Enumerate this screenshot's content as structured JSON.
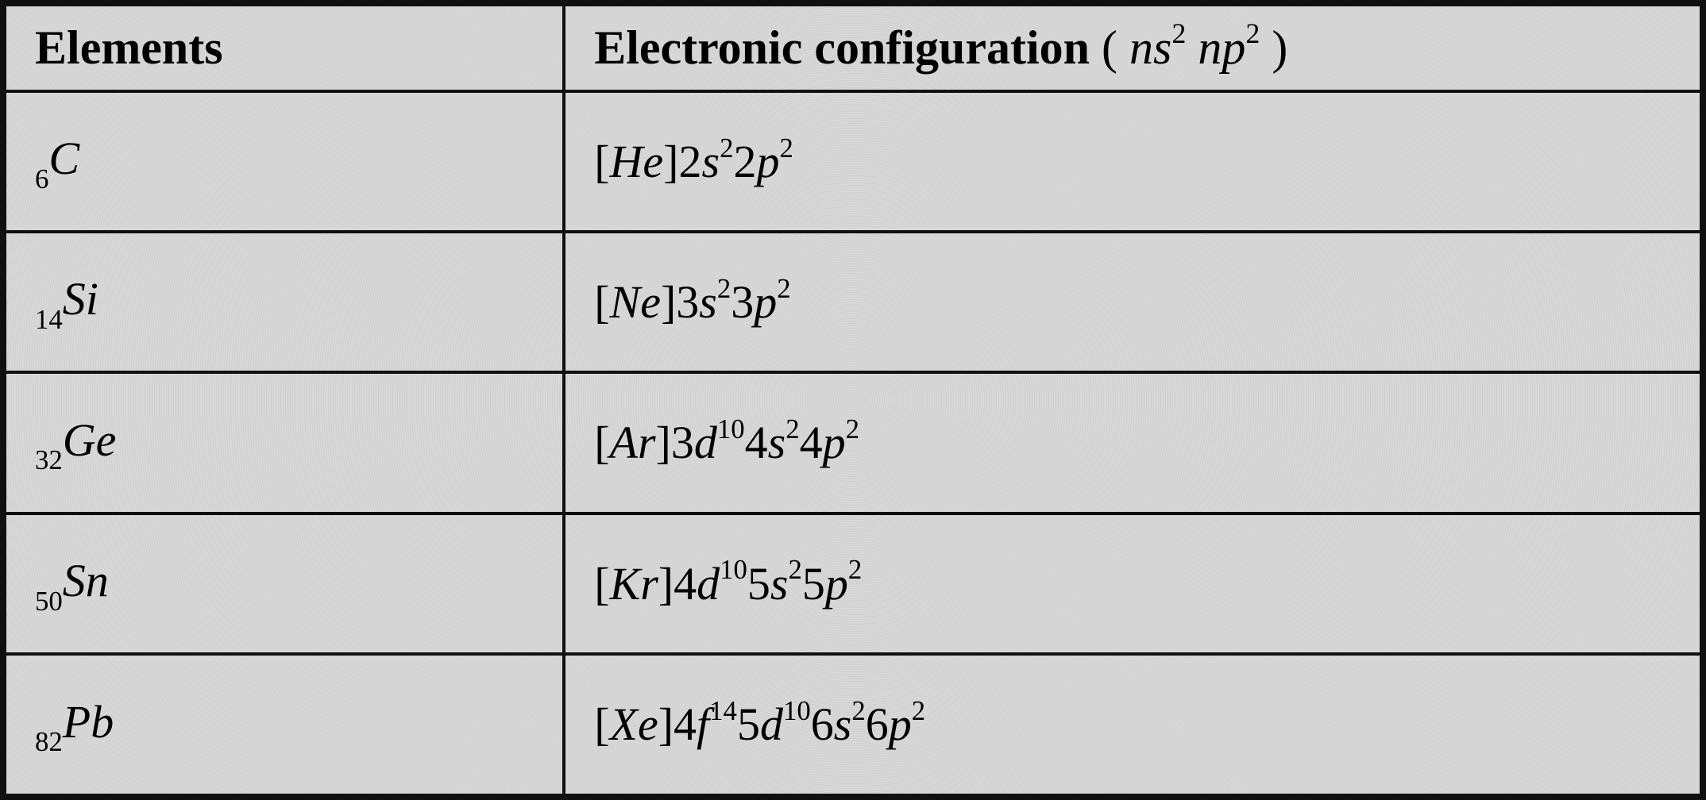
{
  "table": {
    "type": "table",
    "background_color": "#d8d8d8",
    "border_color": "#101010",
    "border_width_outer": 8,
    "border_width_inner": 4,
    "columns": [
      {
        "header": "Elements",
        "width_pct": 33
      },
      {
        "header_main": "Electronic configuration",
        "header_paren_prefix": "(",
        "header_paren_ns": "ns",
        "header_paren_ns_exp": "2",
        "header_paren_np": "np",
        "header_paren_np_exp": "2",
        "header_paren_suffix": ")",
        "width_pct": 67
      }
    ],
    "header_fontsize": 60,
    "cell_fontsize": 58,
    "font_family": "Georgia, Times New Roman, serif",
    "rows": [
      {
        "atomic_number": "6",
        "symbol": "C",
        "config": {
          "noble": "He",
          "segments": [
            {
              "n": "2",
              "orb": "s",
              "exp": "2"
            },
            {
              "n": "2",
              "orb": "p",
              "exp": "2"
            }
          ]
        }
      },
      {
        "atomic_number": "14",
        "symbol": "Si",
        "config": {
          "noble": "Ne",
          "segments": [
            {
              "n": "3",
              "orb": "s",
              "exp": "2"
            },
            {
              "n": "3",
              "orb": "p",
              "exp": "2"
            }
          ]
        }
      },
      {
        "atomic_number": "32",
        "symbol": "Ge",
        "config": {
          "noble": "Ar",
          "segments": [
            {
              "n": "3",
              "orb": "d",
              "exp": "10"
            },
            {
              "n": "4",
              "orb": "s",
              "exp": "2"
            },
            {
              "n": "4",
              "orb": "p",
              "exp": "2"
            }
          ]
        }
      },
      {
        "atomic_number": "50",
        "symbol": "Sn",
        "config": {
          "noble": "Kr",
          "segments": [
            {
              "n": "4",
              "orb": "d",
              "exp": "10"
            },
            {
              "n": "5",
              "orb": "s",
              "exp": "2"
            },
            {
              "n": "5",
              "orb": "p",
              "exp": "2"
            }
          ]
        }
      },
      {
        "atomic_number": "82",
        "symbol": "Pb",
        "config": {
          "noble": "Xe",
          "segments": [
            {
              "n": "4",
              "orb": "f",
              "exp": "14"
            },
            {
              "n": "5",
              "orb": "d",
              "exp": "10"
            },
            {
              "n": "6",
              "orb": "s",
              "exp": "2"
            },
            {
              "n": "6",
              "orb": "p",
              "exp": "2"
            }
          ]
        }
      }
    ]
  }
}
